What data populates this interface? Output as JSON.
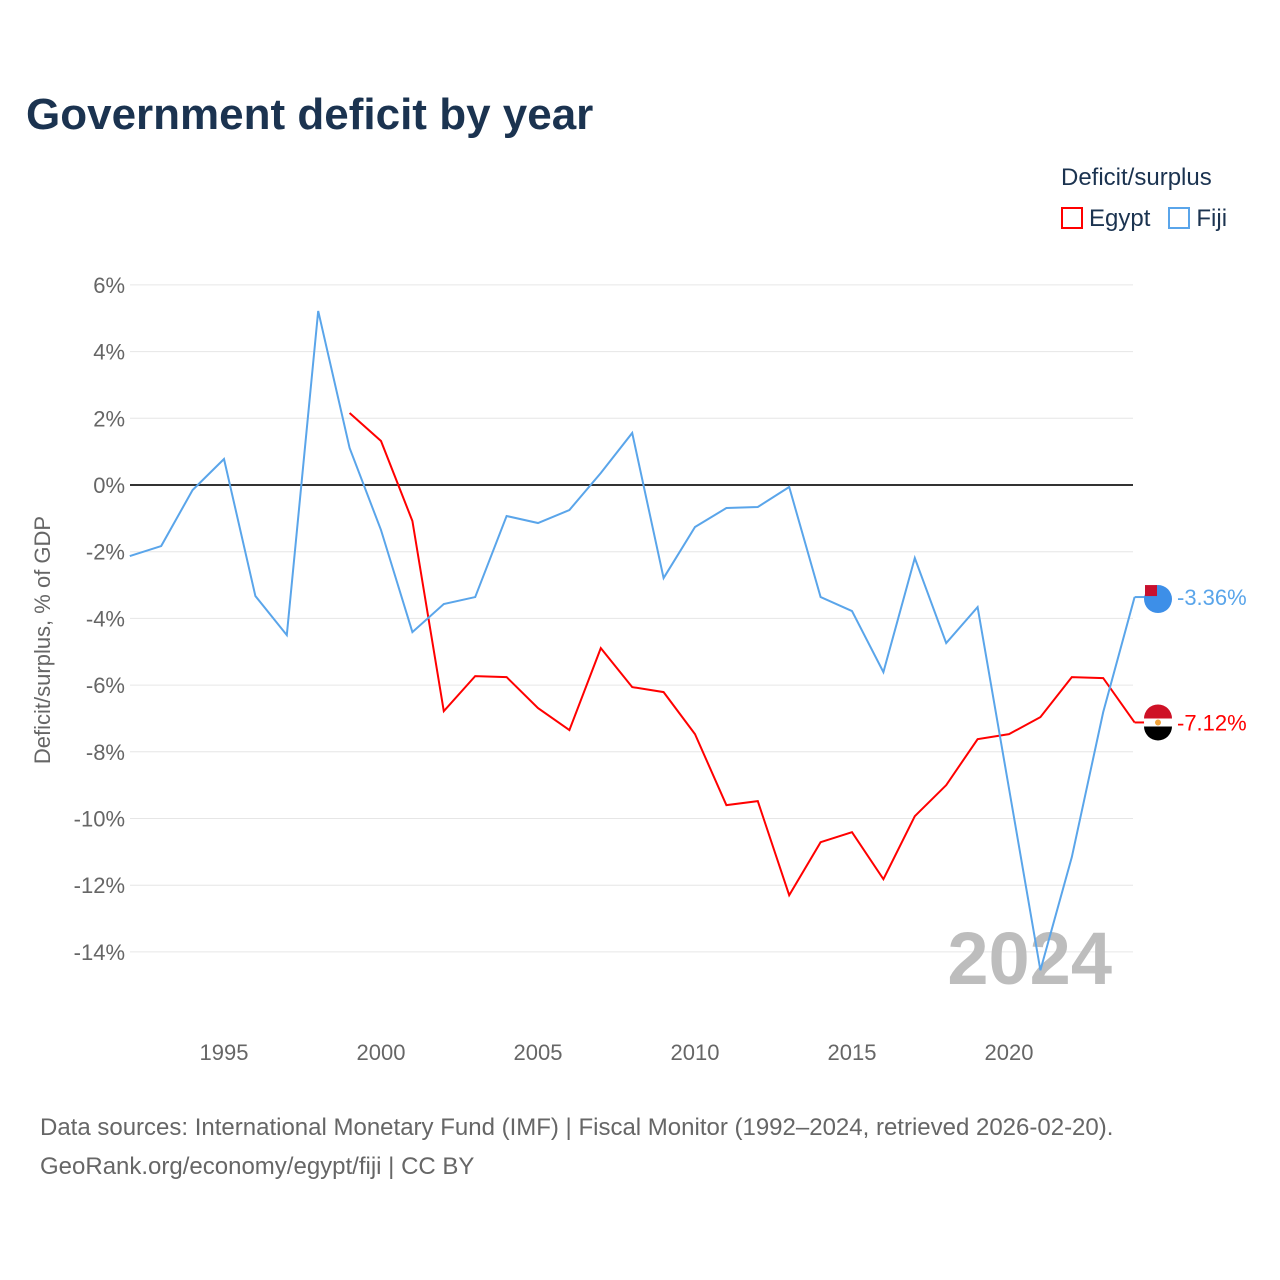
{
  "title": "Government deficit by year",
  "legend": {
    "title": "Deficit/surplus",
    "items": [
      {
        "name": "Egypt",
        "color": "#ff0000"
      },
      {
        "name": "Fiji",
        "color": "#5aa5ea"
      }
    ]
  },
  "source": {
    "line1": "Data sources: International Monetary Fund (IMF) | Fiscal Monitor (1992–2024, retrieved 2026-02-20).",
    "line2": "GeoRank.org/economy/egypt/fiji | CC BY"
  },
  "chart_data": {
    "type": "line",
    "title": "Government deficit by year",
    "ylabel": "Deficit/surplus, % of GDP",
    "xlabel": "",
    "year_label": "2024",
    "xlim": [
      1992,
      2024
    ],
    "ylim": [
      -16,
      6.5
    ],
    "xticks": [
      1995,
      2000,
      2005,
      2010,
      2015,
      2020
    ],
    "yticks": [
      6,
      4,
      2,
      0,
      -2,
      -4,
      -6,
      -8,
      -10,
      -12,
      -14
    ],
    "ytick_labels": [
      "6%",
      "4%",
      "2%",
      "0%",
      "-2%",
      "-4%",
      "-6%",
      "-8%",
      "-10%",
      "-12%",
      "-14%"
    ],
    "series": [
      {
        "name": "Egypt",
        "color": "#ff0000",
        "end_label": "-7.12%",
        "x": [
          1999,
          2000,
          2001,
          2002,
          2003,
          2004,
          2005,
          2006,
          2007,
          2008,
          2009,
          2010,
          2011,
          2012,
          2013,
          2014,
          2015,
          2016,
          2017,
          2018,
          2019,
          2020,
          2021,
          2022,
          2023,
          2024
        ],
        "values": [
          2.16,
          1.32,
          -1.08,
          -6.78,
          -5.73,
          -5.76,
          -6.69,
          -7.35,
          -4.89,
          -6.06,
          -6.21,
          -7.47,
          -9.6,
          -9.48,
          -12.3,
          -10.71,
          -10.41,
          -11.82,
          -9.93,
          -9.0,
          -7.62,
          -7.47,
          -6.96,
          -5.76,
          -5.79,
          -7.12
        ]
      },
      {
        "name": "Fiji",
        "color": "#5aa5ea",
        "end_label": "-3.36%",
        "x": [
          1992,
          1993,
          1994,
          1995,
          1996,
          1997,
          1998,
          1999,
          2000,
          2001,
          2002,
          2003,
          2004,
          2005,
          2006,
          2007,
          2008,
          2009,
          2010,
          2011,
          2012,
          2013,
          2014,
          2015,
          2016,
          2017,
          2018,
          2019,
          2020,
          2021,
          2022,
          2023,
          2024
        ],
        "values": [
          -2.13,
          -1.83,
          -0.15,
          0.78,
          -3.33,
          -4.5,
          5.22,
          1.11,
          -1.35,
          -4.41,
          -3.57,
          -3.36,
          -0.93,
          -1.14,
          -0.75,
          0.36,
          1.56,
          -2.79,
          -1.26,
          -0.69,
          -0.66,
          -0.06,
          -3.36,
          -3.78,
          -5.61,
          -2.19,
          -4.74,
          -3.66,
          -9.1,
          -14.55,
          -11.16,
          -6.81,
          -3.36
        ]
      }
    ]
  }
}
